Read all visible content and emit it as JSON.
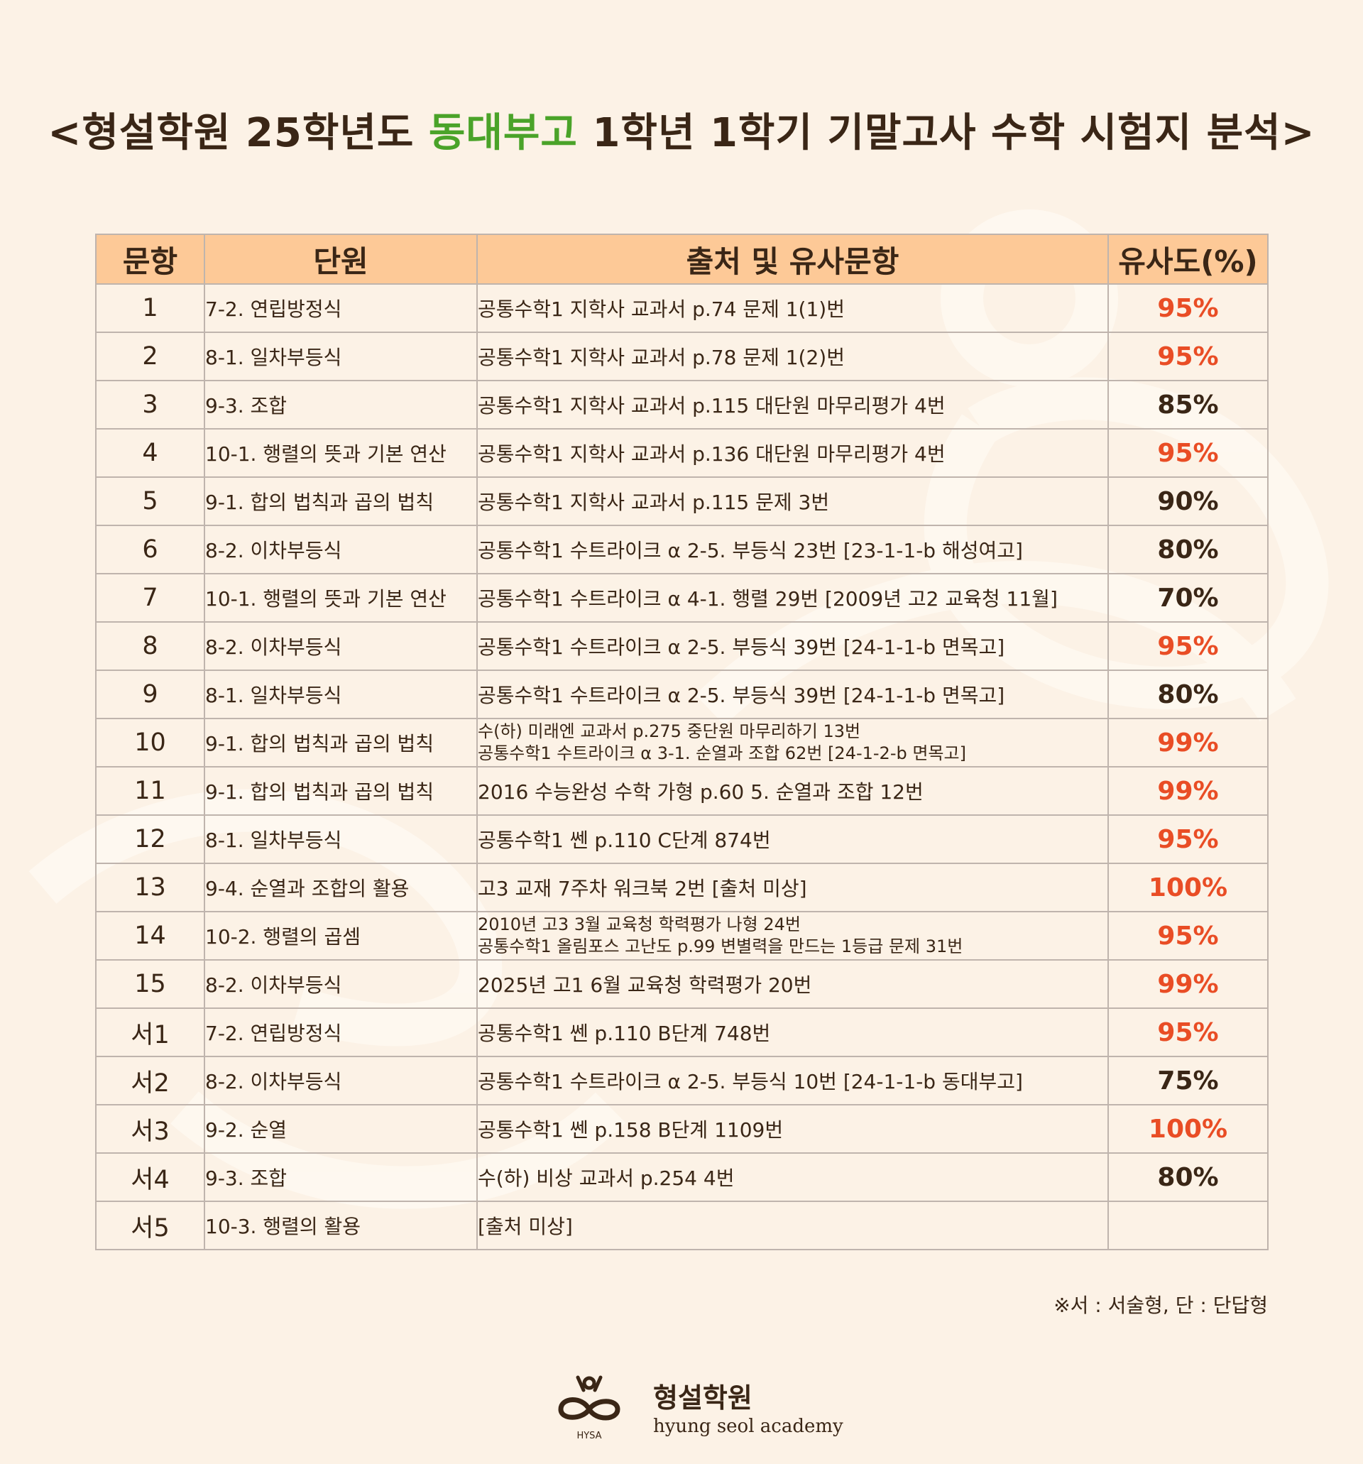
{
  "title": {
    "prefix": "<형설학원 25학년도 ",
    "school": "동대부고",
    "suffix": " 1학년 1학기 기말고사 수학 시험지 분석>"
  },
  "colors": {
    "background": "#fcf2e6",
    "header_bg": "#fdc997",
    "highlight_pct": "#e94d25",
    "normal_text": "#3a2616",
    "school_green": "#4aa329"
  },
  "table": {
    "headers": [
      "문항",
      "단원",
      "출처 및 유사문항",
      "유사도(%)"
    ],
    "rows": [
      {
        "num": "1",
        "unit": "7-2. 연립방정식",
        "source": [
          "공통수학1 지학사 교과서 p.74 문제 1(1)번"
        ],
        "similarity": "95%",
        "highlight": true
      },
      {
        "num": "2",
        "unit": "8-1. 일차부등식",
        "source": [
          "공통수학1 지학사 교과서 p.78 문제 1(2)번"
        ],
        "similarity": "95%",
        "highlight": true
      },
      {
        "num": "3",
        "unit": "9-3. 조합",
        "source": [
          "공통수학1 지학사 교과서 p.115 대단원 마무리평가 4번"
        ],
        "similarity": "85%",
        "highlight": false
      },
      {
        "num": "4",
        "unit": "10-1. 행렬의 뜻과 기본 연산",
        "source": [
          "공통수학1 지학사 교과서 p.136 대단원 마무리평가 4번"
        ],
        "similarity": "95%",
        "highlight": true
      },
      {
        "num": "5",
        "unit": "9-1. 합의 법칙과 곱의 법칙",
        "source": [
          "공통수학1 지학사 교과서 p.115 문제 3번"
        ],
        "similarity": "90%",
        "highlight": false
      },
      {
        "num": "6",
        "unit": "8-2. 이차부등식",
        "source": [
          "공통수학1 수트라이크 α 2-5. 부등식 23번 [23-1-1-b 해성여고]"
        ],
        "similarity": "80%",
        "highlight": false
      },
      {
        "num": "7",
        "unit": "10-1. 행렬의 뜻과 기본 연산",
        "source": [
          "공통수학1 수트라이크 α 4-1. 행렬 29번 [2009년 고2 교육청 11월]"
        ],
        "similarity": "70%",
        "highlight": false
      },
      {
        "num": "8",
        "unit": "8-2. 이차부등식",
        "source": [
          "공통수학1 수트라이크 α 2-5. 부등식 39번 [24-1-1-b 면목고]"
        ],
        "similarity": "95%",
        "highlight": true
      },
      {
        "num": "9",
        "unit": "8-1. 일차부등식",
        "source": [
          "공통수학1 수트라이크 α 2-5. 부등식 39번 [24-1-1-b 면목고]"
        ],
        "similarity": "80%",
        "highlight": false
      },
      {
        "num": "10",
        "unit": "9-1. 합의 법칙과 곱의 법칙",
        "source": [
          "수(하) 미래엔 교과서 p.275 중단원 마무리하기 13번",
          "공통수학1 수트라이크 α 3-1. 순열과 조합 62번 [24-1-2-b 면목고]"
        ],
        "similarity": "99%",
        "highlight": true
      },
      {
        "num": "11",
        "unit": "9-1. 합의 법칙과 곱의 법칙",
        "source": [
          "2016 수능완성 수학 가형 p.60 5. 순열과 조합 12번"
        ],
        "similarity": "99%",
        "highlight": true
      },
      {
        "num": "12",
        "unit": "8-1. 일차부등식",
        "source": [
          "공통수학1 쎈 p.110 C단계 874번"
        ],
        "similarity": "95%",
        "highlight": true
      },
      {
        "num": "13",
        "unit": "9-4. 순열과 조합의 활용",
        "source": [
          "고3 교재 7주차 워크북 2번 [출처 미상]"
        ],
        "similarity": "100%",
        "highlight": true
      },
      {
        "num": "14",
        "unit": "10-2. 행렬의 곱셈",
        "source": [
          "2010년 고3 3월 교육청 학력평가 나형 24번",
          "공통수학1 올림포스 고난도 p.99 변별력을 만드는 1등급 문제 31번"
        ],
        "similarity": "95%",
        "highlight": true
      },
      {
        "num": "15",
        "unit": "8-2. 이차부등식",
        "source": [
          "2025년 고1 6월 교육청 학력평가 20번"
        ],
        "similarity": "99%",
        "highlight": true
      },
      {
        "num": "서1",
        "unit": "7-2. 연립방정식",
        "source": [
          "공통수학1 쎈 p.110 B단계 748번"
        ],
        "similarity": "95%",
        "highlight": true
      },
      {
        "num": "서2",
        "unit": "8-2. 이차부등식",
        "source": [
          "공통수학1 수트라이크 α 2-5. 부등식 10번 [24-1-1-b 동대부고]"
        ],
        "similarity": "75%",
        "highlight": false
      },
      {
        "num": "서3",
        "unit": "9-2. 순열",
        "source": [
          "공통수학1 쎈 p.158 B단계 1109번"
        ],
        "similarity": "100%",
        "highlight": true
      },
      {
        "num": "서4",
        "unit": "9-3. 조합",
        "source": [
          "수(하) 비상 교과서 p.254 4번"
        ],
        "similarity": "80%",
        "highlight": false
      },
      {
        "num": "서5",
        "unit": "10-3. 행렬의 활용",
        "source": [
          "[출처 미상]"
        ],
        "similarity": "",
        "highlight": false
      }
    ]
  },
  "note": "※서 : 서술형, 단 : 단답형",
  "logo": {
    "icon": "hyung-seol-logo-icon",
    "ring_text": "HYSA",
    "name_ko": "형설학원",
    "name_en": "hyung seol academy"
  }
}
